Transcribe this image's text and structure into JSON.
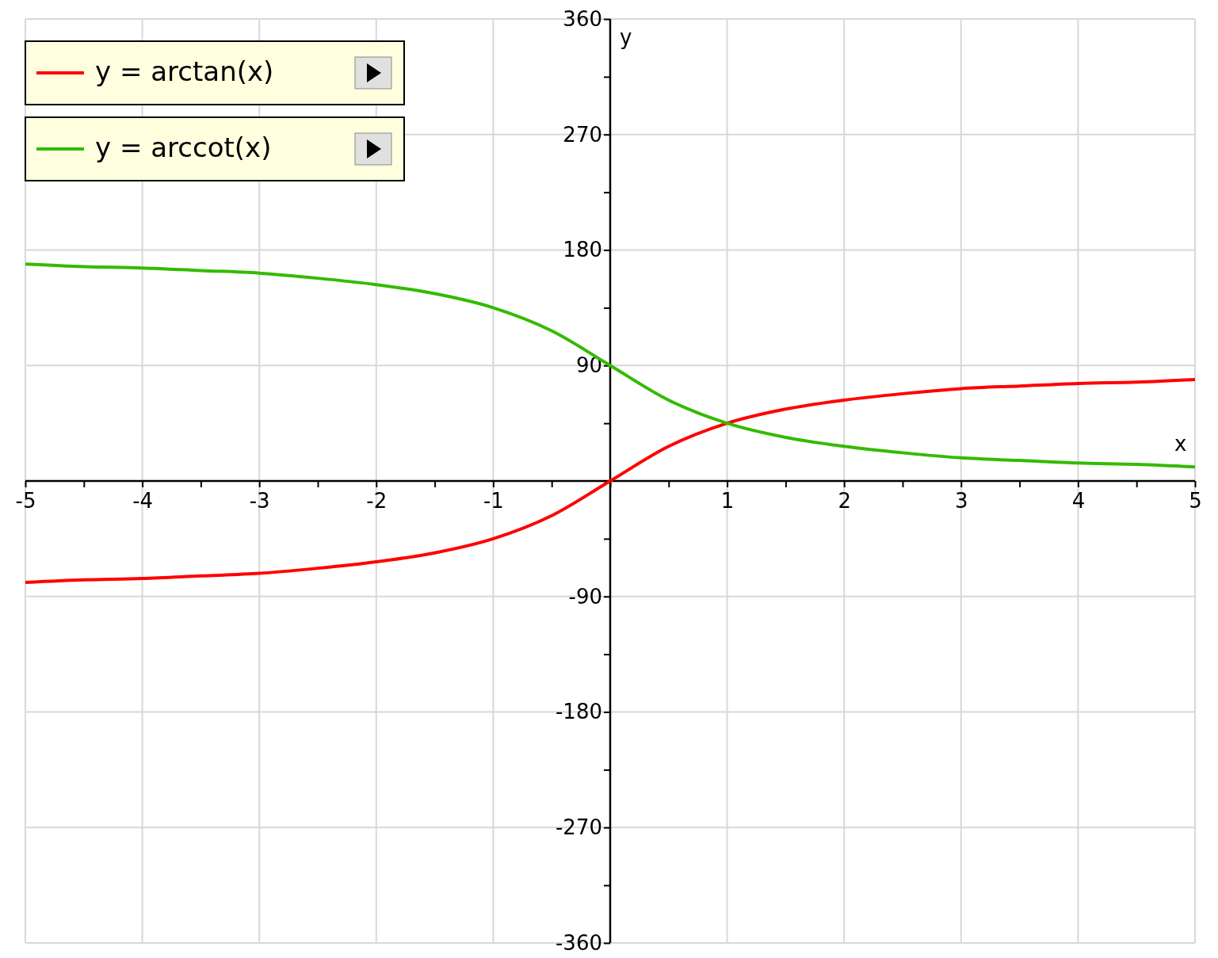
{
  "chart_data": {
    "type": "line",
    "xlabel": "x",
    "ylabel": "y",
    "x": [
      -5,
      -4.5,
      -4,
      -3.5,
      -3,
      -2.5,
      -2,
      -1.5,
      -1,
      -0.5,
      0,
      0.5,
      1,
      1.5,
      2,
      2.5,
      3,
      3.5,
      4,
      4.5,
      5
    ],
    "series": [
      {
        "name": "y = arctan(x)",
        "color": "#ff0000",
        "values": [
          -79,
          -77,
          -76,
          -74,
          -72,
          -68,
          -63,
          -56,
          -45,
          -27,
          0,
          27,
          45,
          56,
          63,
          68,
          72,
          74,
          76,
          77,
          79
        ]
      },
      {
        "name": "y = arccot(x)",
        "color": "#33bb00",
        "values": [
          169,
          167,
          166,
          164,
          162,
          158,
          153,
          146,
          135,
          117,
          90,
          63,
          45,
          34,
          27,
          22,
          18,
          16,
          14,
          13,
          11
        ]
      }
    ],
    "xlim": [
      -5,
      5
    ],
    "ylim": [
      -360,
      360
    ],
    "xticks": [
      -5,
      {
        "value": -4.5,
        "label": null
      },
      -4,
      {
        "value": -3.5,
        "label": null
      },
      -3,
      {
        "value": -2.5,
        "label": null
      },
      -2,
      {
        "value": -1.5,
        "label": null
      },
      -1,
      {
        "value": -0.5,
        "label": null
      },
      {
        "value": 0,
        "label": null
      },
      {
        "value": 0.5,
        "label": null
      },
      1,
      {
        "value": 1.5,
        "label": null
      },
      2,
      {
        "value": 2.5,
        "label": null
      },
      3,
      {
        "value": 3.5,
        "label": null
      },
      4,
      {
        "value": 4.5,
        "label": null
      },
      5
    ],
    "yticks": [
      -360,
      {
        "value": -315,
        "label": null
      },
      -270,
      {
        "value": -225,
        "label": null
      },
      -180,
      {
        "value": -135,
        "label": null
      },
      -90,
      {
        "value": -45,
        "label": null
      },
      {
        "value": 0,
        "label": null
      },
      {
        "value": 45,
        "label": null
      },
      90,
      {
        "value": 135,
        "label": null
      },
      180,
      {
        "value": 225,
        "label": null
      },
      270,
      {
        "value": 315,
        "label": null
      },
      360
    ],
    "grid": true,
    "legend": "top left",
    "marker": "none",
    "line_style": "solid"
  }
}
